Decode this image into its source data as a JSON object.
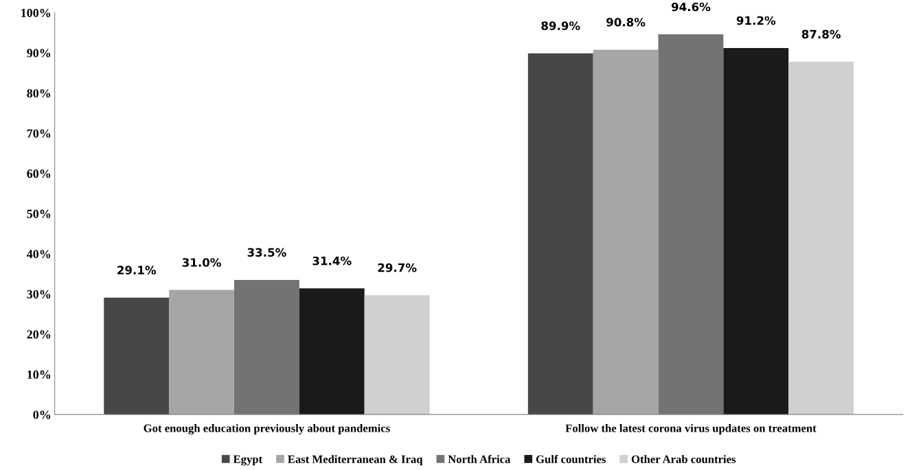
{
  "chart_data": {
    "type": "bar",
    "categories": [
      "Got enough education previously about pandemics",
      "Follow the latest corona virus updates on treatment"
    ],
    "series": [
      {
        "name": "Egypt",
        "color": "#474747",
        "values": [
          29.1,
          89.9
        ],
        "value_labels": [
          "29.1%",
          "89.9%"
        ]
      },
      {
        "name": "East Mediterranean & Iraq",
        "color": "#a6a6a6",
        "values": [
          31.0,
          90.8
        ],
        "value_labels": [
          "31.0%",
          "90.8%"
        ]
      },
      {
        "name": "North Africa",
        "color": "#737373",
        "values": [
          33.5,
          94.6
        ],
        "value_labels": [
          "33.5%",
          "94.6%"
        ]
      },
      {
        "name": "Gulf countries",
        "color": "#1a1a1a",
        "values": [
          31.4,
          91.2
        ],
        "value_labels": [
          "31.4%",
          "91.2%"
        ]
      },
      {
        "name": "Other Arab countries",
        "color": "#d0d0d0",
        "values": [
          29.7,
          87.8
        ],
        "value_labels": [
          "29.7%",
          "87.8%"
        ]
      }
    ],
    "ylim": [
      0,
      100
    ],
    "yticks": [
      {
        "value": 0,
        "label": "0%"
      },
      {
        "value": 10,
        "label": "10%"
      },
      {
        "value": 20,
        "label": "20%"
      },
      {
        "value": 30,
        "label": "30%"
      },
      {
        "value": 40,
        "label": "40%"
      },
      {
        "value": 50,
        "label": "50%"
      },
      {
        "value": 60,
        "label": "60%"
      },
      {
        "value": 70,
        "label": "70%"
      },
      {
        "value": 80,
        "label": "80%"
      },
      {
        "value": 90,
        "label": "90%"
      },
      {
        "value": 100,
        "label": "100%"
      }
    ],
    "grid": false,
    "legend": "bottom"
  }
}
